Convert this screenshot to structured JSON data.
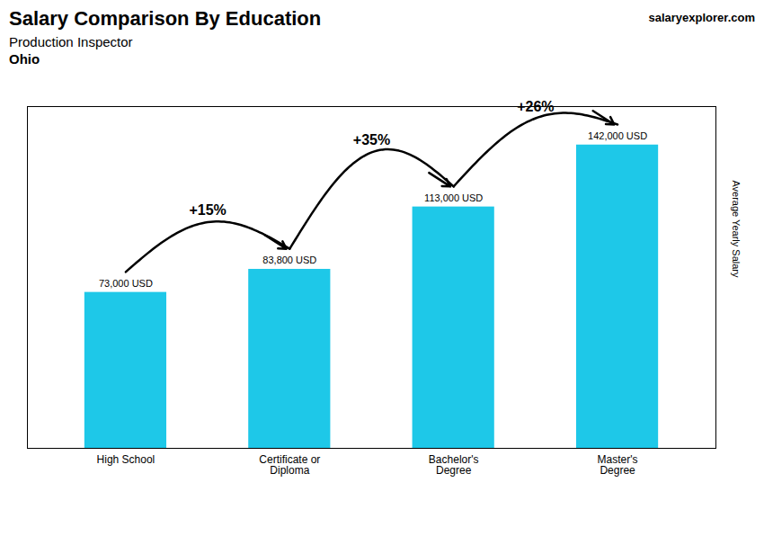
{
  "chart_data": {
    "type": "bar",
    "title": "Salary Comparison By Education",
    "subtitle": "Production Inspector",
    "location": "Ohio",
    "watermark": "salaryexplorer.com",
    "ylabel": "Average Yearly Salary",
    "categories": [
      "High School",
      "Certificate or\nDiploma",
      "Bachelor's\nDegree",
      "Master's\nDegree"
    ],
    "values": [
      73000,
      83800,
      113000,
      142000
    ],
    "value_labels": [
      "73,000 USD",
      "83,800 USD",
      "113,000 USD",
      "142,000 USD"
    ],
    "data_labels": true,
    "annotations": [
      "+15%",
      "+35%",
      "+26%"
    ],
    "color": "#1ec8e8",
    "ylim": [
      0,
      160000
    ],
    "tick_labels": "x"
  }
}
